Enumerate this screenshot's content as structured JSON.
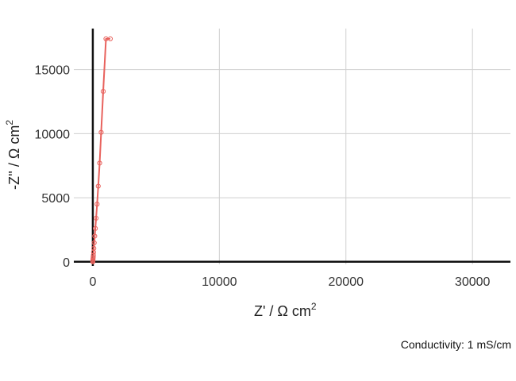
{
  "chart_data": {
    "type": "line",
    "xlabel_main": "Z' / Ω cm",
    "xlabel_sup": "2",
    "ylabel_main": "-Z'' / Ω cm",
    "ylabel_sup": "2",
    "xlim": [
      -1500,
      33000
    ],
    "ylim": [
      -200,
      18200
    ],
    "x_ticks": [
      0,
      10000,
      20000,
      30000
    ],
    "y_ticks": [
      0,
      5000,
      10000,
      15000
    ],
    "x_tick_labels": [
      "0",
      "10000",
      "20000",
      "30000"
    ],
    "y_tick_labels": [
      "0",
      "5000",
      "10000",
      "15000"
    ],
    "grid": true,
    "series": [
      {
        "color": "#e8625d",
        "x": [
          0,
          2,
          5,
          10,
          20,
          30,
          45,
          60,
          80,
          110,
          150,
          200,
          260,
          340,
          430,
          540,
          660,
          820,
          1040,
          1380
        ],
        "y": [
          0,
          30,
          70,
          130,
          230,
          360,
          520,
          750,
          1050,
          1480,
          2000,
          2600,
          3400,
          4500,
          5900,
          7700,
          10100,
          13300,
          17400,
          17400
        ]
      }
    ],
    "caption": "Conductivity: 1 mS/cm"
  }
}
